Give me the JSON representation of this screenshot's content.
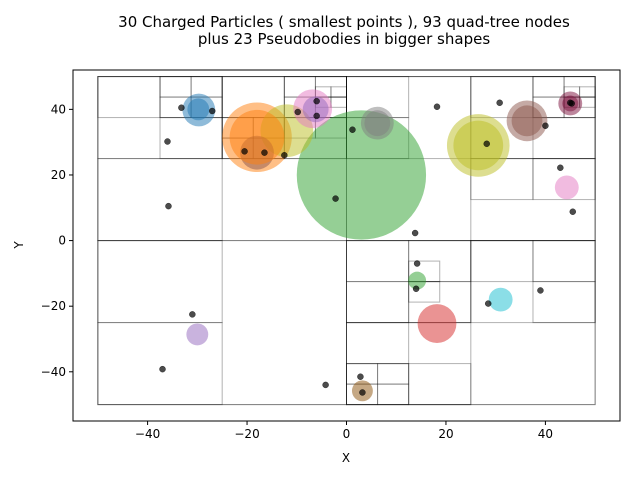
{
  "chart_data": {
    "type": "scatter",
    "title_lines": [
      "30 Charged Particles ( smallest points ), 93 quad-tree nodes",
      "plus 23 Pseudobodies in bigger shapes"
    ],
    "xlabel": "X",
    "ylabel": "Y",
    "xlim": [
      -55,
      55
    ],
    "ylim": [
      -55,
      52
    ],
    "xticks": [
      -40,
      -20,
      0,
      20,
      40
    ],
    "yticks": [
      -40,
      -20,
      0,
      20,
      40
    ],
    "xtick_labels": [
      "−40",
      "−20",
      "0",
      "20",
      "40"
    ],
    "ytick_labels": [
      "−40",
      "−20",
      "0",
      "20",
      "40"
    ],
    "grid": false,
    "quadtree_cells": [
      [
        -50,
        -50,
        100,
        100
      ],
      [
        -50,
        0,
        50,
        50
      ],
      [
        0,
        0,
        50,
        50
      ],
      [
        -50,
        -50,
        50,
        50
      ],
      [
        0,
        -50,
        50,
        50
      ],
      [
        -50,
        25,
        25,
        25
      ],
      [
        -25,
        25,
        25,
        25
      ],
      [
        0,
        25,
        25,
        25
      ],
      [
        25,
        25,
        25,
        25
      ],
      [
        -50,
        0,
        25,
        25
      ],
      [
        25,
        0,
        25,
        25
      ],
      [
        -50,
        -25,
        25,
        25
      ],
      [
        -50,
        -50,
        25,
        25
      ],
      [
        0,
        -25,
        25,
        25
      ],
      [
        0,
        -50,
        25,
        25
      ],
      [
        25,
        -25,
        25,
        25
      ],
      [
        -37.5,
        37.5,
        12.5,
        12.5
      ],
      [
        -50,
        37.5,
        12.5,
        12.5
      ],
      [
        -37.5,
        25,
        12.5,
        12.5
      ],
      [
        -25,
        37.5,
        12.5,
        12.5
      ],
      [
        -12.5,
        37.5,
        12.5,
        12.5
      ],
      [
        -25,
        25,
        12.5,
        12.5
      ],
      [
        -12.5,
        25,
        12.5,
        12.5
      ],
      [
        0,
        37.5,
        12.5,
        12.5
      ],
      [
        0,
        25,
        12.5,
        12.5
      ],
      [
        25,
        37.5,
        12.5,
        12.5
      ],
      [
        37.5,
        37.5,
        12.5,
        12.5
      ],
      [
        37.5,
        25,
        12.5,
        12.5
      ],
      [
        25,
        12.5,
        12.5,
        12.5
      ],
      [
        37.5,
        12.5,
        12.5,
        12.5
      ],
      [
        12.5,
        -12.5,
        12.5,
        12.5
      ],
      [
        0,
        -12.5,
        12.5,
        12.5
      ],
      [
        12.5,
        -25,
        12.5,
        12.5
      ],
      [
        0,
        -25,
        12.5,
        12.5
      ],
      [
        25,
        -12.5,
        12.5,
        12.5
      ],
      [
        37.5,
        -12.5,
        12.5,
        12.5
      ],
      [
        37.5,
        -25,
        12.5,
        12.5
      ],
      [
        0,
        -37.5,
        12.5,
        12.5
      ],
      [
        0,
        -50,
        12.5,
        12.5
      ],
      [
        12.5,
        -50,
        12.5,
        12.5
      ],
      [
        -31.25,
        43.75,
        6.25,
        6.25
      ],
      [
        -31.25,
        37.5,
        6.25,
        6.25
      ],
      [
        -37.5,
        37.5,
        6.25,
        6.25
      ],
      [
        -37.5,
        43.75,
        6.25,
        6.25
      ],
      [
        -18.75,
        31.25,
        6.25,
        6.25
      ],
      [
        -25,
        31.25,
        6.25,
        6.25
      ],
      [
        -18.75,
        25,
        6.25,
        6.25
      ],
      [
        -25,
        25,
        6.25,
        6.25
      ],
      [
        -12.5,
        37.5,
        6.25,
        6.25
      ],
      [
        -6.25,
        37.5,
        6.25,
        6.25
      ],
      [
        -6.25,
        43.75,
        6.25,
        6.25
      ],
      [
        -12.5,
        43.75,
        6.25,
        6.25
      ],
      [
        -12.5,
        31.25,
        6.25,
        6.25
      ],
      [
        -6.25,
        31.25,
        6.25,
        6.25
      ],
      [
        43.75,
        37.5,
        6.25,
        6.25
      ],
      [
        43.75,
        43.75,
        6.25,
        6.25
      ],
      [
        37.5,
        43.75,
        6.25,
        6.25
      ],
      [
        37.5,
        37.5,
        6.25,
        6.25
      ],
      [
        0,
        -43.75,
        6.25,
        6.25
      ],
      [
        6.25,
        -43.75,
        6.25,
        6.25
      ],
      [
        0,
        -50,
        6.25,
        6.25
      ],
      [
        6.25,
        -50,
        6.25,
        6.25
      ],
      [
        12.5,
        -18.75,
        6.25,
        6.25
      ],
      [
        12.5,
        -12.5,
        6.25,
        6.25
      ],
      [
        43.75,
        40.625,
        3.125,
        3.125
      ],
      [
        43.75,
        43.75,
        3.125,
        3.125
      ],
      [
        46.875,
        40.625,
        3.125,
        3.125
      ],
      [
        46.875,
        43.75,
        3.125,
        3.125
      ],
      [
        -6.25,
        40.625,
        3.125,
        3.125
      ],
      [
        -6.25,
        43.75,
        3.125,
        3.125
      ],
      [
        -3.125,
        40.625,
        3.125,
        3.125
      ],
      [
        -3.125,
        43.75,
        3.125,
        3.125
      ]
    ],
    "particles": [
      [
        -33.2,
        40.5
      ],
      [
        -27,
        39.5
      ],
      [
        -36,
        30.2
      ],
      [
        -35.8,
        10.5
      ],
      [
        -20.5,
        27.2
      ],
      [
        -16.5,
        26.8
      ],
      [
        -12.5,
        26
      ],
      [
        -9.8,
        39.2
      ],
      [
        -6,
        42.5
      ],
      [
        -6,
        38
      ],
      [
        1.2,
        33.8
      ],
      [
        -2.2,
        12.8
      ],
      [
        18.2,
        40.8
      ],
      [
        30.8,
        42
      ],
      [
        40,
        35
      ],
      [
        45,
        42
      ],
      [
        28.2,
        29.5
      ],
      [
        43,
        22.2
      ],
      [
        45.5,
        8.8
      ],
      [
        13.8,
        2.3
      ],
      [
        14.2,
        -7
      ],
      [
        14,
        -14.7
      ],
      [
        28.5,
        -19.2
      ],
      [
        39,
        -15.2
      ],
      [
        -31,
        -22.5
      ],
      [
        -37,
        -39.2
      ],
      [
        -4.2,
        -44
      ],
      [
        2.8,
        -41.5
      ],
      [
        3.2,
        -46.3
      ],
      [
        45.3,
        41.8
      ]
    ],
    "pseudobodies": [
      {
        "x": 3,
        "y": 20,
        "r": 13,
        "color": "#2ca02c"
      },
      {
        "x": -18,
        "y": 31.5,
        "r": 7,
        "color": "#ff7f0e"
      },
      {
        "x": 26.5,
        "y": 29,
        "r": 6.3,
        "color": "#bcbd22"
      },
      {
        "x": -12,
        "y": 33.5,
        "r": 5.3,
        "color": "#bcbd22"
      },
      {
        "x": 36.3,
        "y": 36.5,
        "r": 4.1,
        "color": "#8c564b"
      },
      {
        "x": -6.8,
        "y": 40.2,
        "r": 3.9,
        "color": "#e377c2"
      },
      {
        "x": 18.2,
        "y": -25.3,
        "r": 3.9,
        "color": "#d62728"
      },
      {
        "x": -29.7,
        "y": 39.8,
        "r": 3.3,
        "color": "#1f77b4"
      },
      {
        "x": 6.2,
        "y": 35.8,
        "r": 3.3,
        "color": "#7f7f7f"
      },
      {
        "x": -18,
        "y": 26.8,
        "r": 3.4,
        "color": "#8c564b"
      },
      {
        "x": -6.2,
        "y": 40,
        "r": 2.6,
        "color": "#9467bd"
      },
      {
        "x": 31,
        "y": -18,
        "r": 2.4,
        "color": "#17becf"
      },
      {
        "x": 44.3,
        "y": 16.2,
        "r": 2.4,
        "color": "#e377c2"
      },
      {
        "x": 45,
        "y": 41.8,
        "r": 2.4,
        "color": "#7b0f3c"
      },
      {
        "x": -30,
        "y": -28.6,
        "r": 2.2,
        "color": "#9467bd"
      },
      {
        "x": 3.2,
        "y": -45.8,
        "r": 2.1,
        "color": "#8c510a"
      },
      {
        "x": 14.2,
        "y": -12.2,
        "r": 1.8,
        "color": "#2ca02c"
      },
      {
        "x": -29.8,
        "y": 40,
        "r": 2.2,
        "color": "#1f77b4"
      },
      {
        "x": 36.3,
        "y": 36.5,
        "r": 3.1,
        "color": "#8c564b"
      },
      {
        "x": 26.5,
        "y": 29,
        "r": 5,
        "color": "#bcbd22"
      },
      {
        "x": 45,
        "y": 41.8,
        "r": 1.6,
        "color": "#7b0f3c"
      },
      {
        "x": 6.2,
        "y": 35.8,
        "r": 2.6,
        "color": "#7f7f7f"
      },
      {
        "x": -18,
        "y": 31.5,
        "r": 5.5,
        "color": "#ff7f0e"
      }
    ]
  }
}
